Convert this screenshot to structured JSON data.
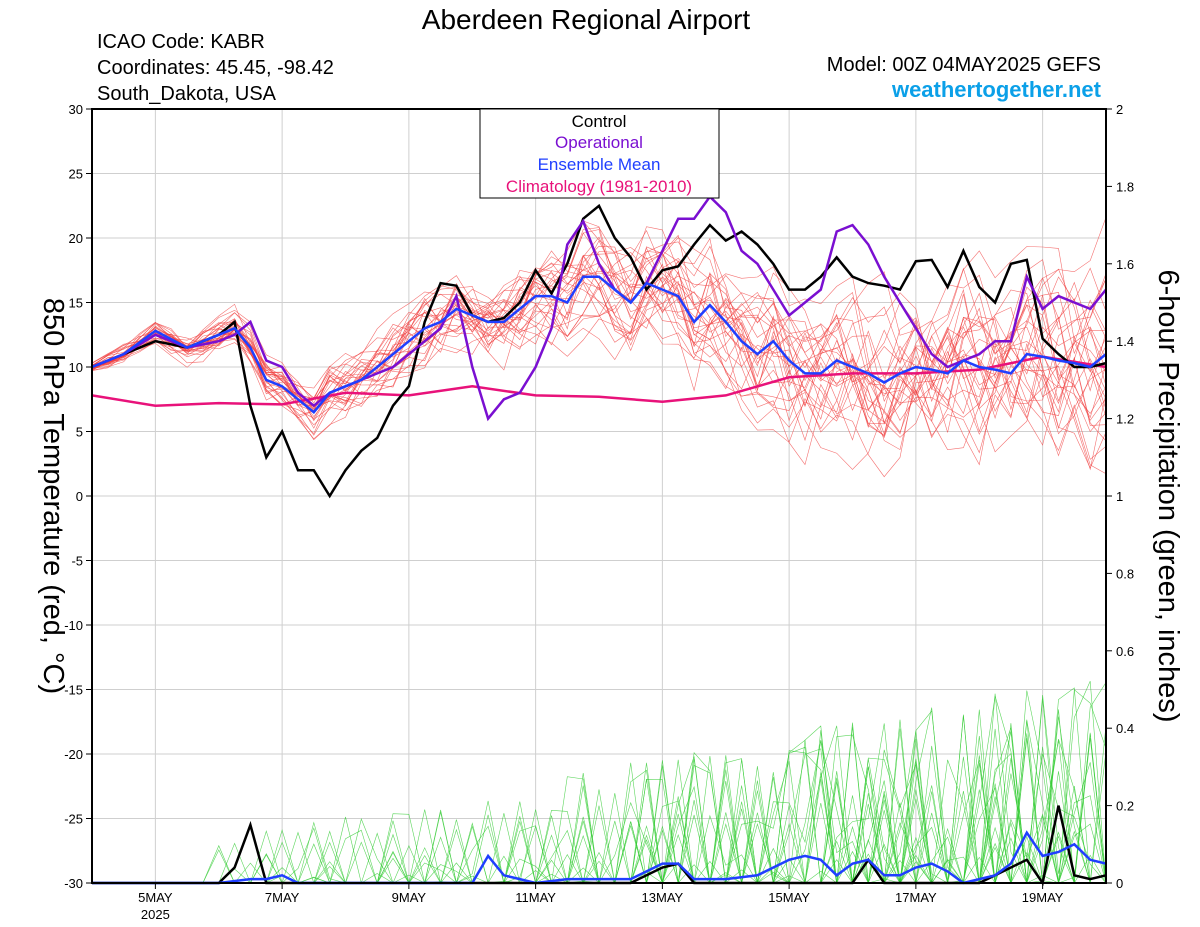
{
  "header": {
    "title": "Aberdeen Regional Airport",
    "icao": "ICAO Code: KABR",
    "coords": "Coordinates: 45.45, -98.42",
    "location": "South_Dakota, USA",
    "model": "Model: 00Z 04MAY2025 GEFS",
    "site": "weathertogether.net"
  },
  "chart_data": {
    "type": "line",
    "left_axis": {
      "label": "850 hPa Temperature (red, °C)",
      "range": [
        -30,
        30
      ],
      "ticks": [
        -30,
        -25,
        -20,
        -15,
        -10,
        -5,
        0,
        5,
        10,
        15,
        20,
        25,
        30
      ]
    },
    "right_axis": {
      "label": "6-hour Precipitation (green, inches)",
      "range": [
        0,
        2
      ],
      "ticks": [
        "0",
        "0.2",
        "0.4",
        "0.6",
        "0.8",
        "1",
        "1.2",
        "1.4",
        "1.6",
        "1.8",
        "2"
      ]
    },
    "x_axis": {
      "start_day": 4,
      "end_day": 20,
      "tick_labels": [
        {
          "day": 5,
          "label": "5MAY",
          "sub": "2025"
        },
        {
          "day": 7,
          "label": "7MAY"
        },
        {
          "day": 9,
          "label": "9MAY"
        },
        {
          "day": 11,
          "label": "11MAY"
        },
        {
          "day": 13,
          "label": "13MAY"
        },
        {
          "day": 15,
          "label": "15MAY"
        },
        {
          "day": 17,
          "label": "17MAY"
        },
        {
          "day": 19,
          "label": "19MAY"
        }
      ]
    },
    "legend": [
      "Control",
      "Operational",
      "Ensemble Mean",
      "Climatology (1981-2010)"
    ],
    "legend_placement": "top-center",
    "colors": {
      "control": "#000000",
      "operational": "#7a0fd1",
      "ensemble_mean": "#1f3fff",
      "climatology": "#e8127a",
      "members_temp": "#f04040",
      "members_precip": "#33cc33"
    },
    "control_temp": {
      "day": [
        4,
        4.5,
        5,
        5.5,
        6,
        6.25,
        6.5,
        6.75,
        7,
        7.25,
        7.5,
        7.75,
        8,
        8.25,
        8.5,
        8.75,
        9,
        9.25,
        9.5,
        9.75,
        10,
        10.25,
        10.5,
        10.75,
        11,
        11.25,
        11.5,
        11.75,
        12,
        12.25,
        12.5,
        12.75,
        13,
        13.25,
        13.5,
        13.75,
        14,
        14.25,
        14.5,
        14.75,
        15,
        15.25,
        15.5,
        15.75,
        16,
        16.25,
        16.5,
        16.75,
        17,
        17.25,
        17.5,
        17.75,
        18,
        18.25,
        18.5,
        18.75,
        19,
        19.25,
        19.5,
        19.75,
        20
      ],
      "temp": [
        10,
        11,
        12,
        11.5,
        12.5,
        13.5,
        7,
        3,
        5,
        2,
        2,
        0,
        2,
        3.5,
        4.5,
        7,
        8.5,
        13.5,
        16.5,
        16.3,
        14,
        13.5,
        13.8,
        15,
        17.5,
        15.7,
        18,
        21.5,
        22.5,
        20,
        18.5,
        16,
        17.5,
        17.8,
        19.5,
        21,
        19.8,
        20.5,
        19.5,
        18,
        16,
        16,
        17,
        18.5,
        17,
        16.5,
        16.3,
        16,
        18.2,
        18.3,
        16.2,
        19,
        16.2,
        15,
        18,
        18.3,
        12.2,
        11,
        10,
        10,
        10.3
      ]
    },
    "operational_temp": {
      "day": [
        4,
        4.5,
        5,
        5.5,
        6,
        6.25,
        6.5,
        6.75,
        7,
        7.25,
        7.5,
        7.75,
        8,
        8.25,
        8.5,
        8.75,
        9,
        9.25,
        9.5,
        9.75,
        10,
        10.25,
        10.5,
        10.75,
        11,
        11.25,
        11.5,
        11.75,
        12,
        12.25,
        12.5,
        12.75,
        13,
        13.25,
        13.5,
        13.75,
        14,
        14.25,
        14.5,
        14.75,
        15,
        15.25,
        15.5,
        15.75,
        16,
        16.25,
        16.5,
        16.75,
        17,
        17.25,
        17.5,
        17.75,
        18,
        18.25,
        18.5,
        18.75,
        19,
        19.25,
        19.5,
        19.75,
        20
      ],
      "temp": [
        10,
        11,
        12.5,
        11.5,
        12,
        12.5,
        13.5,
        10.5,
        10,
        8,
        7,
        8,
        8.5,
        9,
        9.5,
        10,
        11,
        12,
        13,
        15.5,
        10,
        6,
        7.5,
        8,
        10,
        13,
        19.5,
        21.3,
        18,
        16,
        15,
        16.5,
        19,
        21.5,
        21.5,
        23.2,
        22,
        19,
        18,
        16,
        14,
        15,
        16,
        20.5,
        21,
        19.5,
        17,
        15,
        13,
        11,
        10,
        10.5,
        11,
        12,
        12,
        17,
        14.5,
        15.5,
        15,
        14.5,
        16
      ]
    },
    "ensemble_mean_temp": {
      "day": [
        4,
        4.5,
        5,
        5.5,
        6,
        6.25,
        6.5,
        6.75,
        7,
        7.25,
        7.5,
        7.75,
        8,
        8.25,
        8.5,
        8.75,
        9,
        9.25,
        9.5,
        9.75,
        10,
        10.25,
        10.5,
        10.75,
        11,
        11.25,
        11.5,
        11.75,
        12,
        12.25,
        12.5,
        12.75,
        13,
        13.25,
        13.5,
        13.75,
        14,
        14.25,
        14.5,
        14.75,
        15,
        15.25,
        15.5,
        15.75,
        16,
        16.25,
        16.5,
        16.75,
        17,
        17.25,
        17.5,
        17.75,
        18,
        18.25,
        18.5,
        18.75,
        19,
        19.25,
        19.5,
        19.75,
        20
      ],
      "temp": [
        10,
        11,
        12.8,
        11.5,
        12.5,
        13,
        11.5,
        9,
        8.5,
        7.5,
        6.5,
        8,
        8.5,
        9,
        10,
        11,
        12,
        13,
        13.5,
        14.5,
        14,
        13.5,
        13.5,
        14.5,
        15.5,
        15.5,
        15,
        17,
        17,
        16,
        15,
        16.5,
        16,
        15.5,
        13.5,
        14.8,
        13.5,
        12,
        11,
        12,
        10.5,
        9.5,
        9.5,
        10.5,
        10,
        9.5,
        8.8,
        9.5,
        10,
        9.8,
        9.5,
        10.5,
        10,
        9.8,
        9.5,
        11,
        10.8,
        10.5,
        10.3,
        10,
        11
      ]
    },
    "climatology_temp": {
      "day": [
        4,
        5,
        6,
        7,
        8,
        9,
        10,
        11,
        12,
        13,
        14,
        15,
        16,
        17,
        18,
        19,
        20
      ],
      "temp": [
        7.8,
        7,
        7.2,
        7.1,
        8,
        7.8,
        8.5,
        7.8,
        7.7,
        7.3,
        7.8,
        9.2,
        9.5,
        9.5,
        9.8,
        10.8,
        10
      ]
    },
    "control_precip": {
      "day": [
        4,
        5,
        6,
        6.25,
        6.5,
        6.75,
        7,
        7.5,
        8,
        9,
        10,
        11,
        12,
        12.5,
        13,
        13.25,
        13.5,
        13.75,
        14,
        15,
        16,
        16.25,
        16.5,
        16.75,
        17,
        17.5,
        18,
        18.5,
        18.75,
        19,
        19.25,
        19.5,
        19.75,
        20
      ],
      "precip": [
        0,
        0,
        0,
        0.04,
        0.15,
        0,
        0,
        0,
        0,
        0,
        0,
        0,
        0,
        0,
        0.04,
        0.05,
        0,
        0,
        0,
        0,
        0,
        0.06,
        0,
        0,
        0,
        0,
        0,
        0.04,
        0.06,
        0,
        0.2,
        0.02,
        0.01,
        0.02
      ]
    },
    "ensemble_mean_precip": {
      "day": [
        4,
        5,
        6,
        6.5,
        6.75,
        7,
        7.25,
        7.5,
        8,
        9,
        10,
        10.25,
        10.5,
        10.75,
        11,
        11.5,
        12,
        12.5,
        13,
        13.25,
        13.5,
        13.75,
        14,
        14.5,
        15,
        15.25,
        15.5,
        15.75,
        16,
        16.25,
        16.5,
        16.75,
        17,
        17.25,
        17.5,
        17.75,
        18,
        18.25,
        18.5,
        18.75,
        19,
        19.25,
        19.5,
        19.75,
        20
      ],
      "precip": [
        0,
        0,
        0,
        0.01,
        0.01,
        0.02,
        0,
        0,
        0,
        0,
        0,
        0.07,
        0.02,
        0.01,
        0,
        0.01,
        0.01,
        0.01,
        0.05,
        0.05,
        0.01,
        0.01,
        0.01,
        0.02,
        0.06,
        0.07,
        0.06,
        0.02,
        0.05,
        0.06,
        0.02,
        0.02,
        0.04,
        0.05,
        0.03,
        0,
        0.01,
        0.02,
        0.05,
        0.13,
        0.07,
        0.08,
        0.1,
        0.06,
        0.05
      ]
    }
  }
}
